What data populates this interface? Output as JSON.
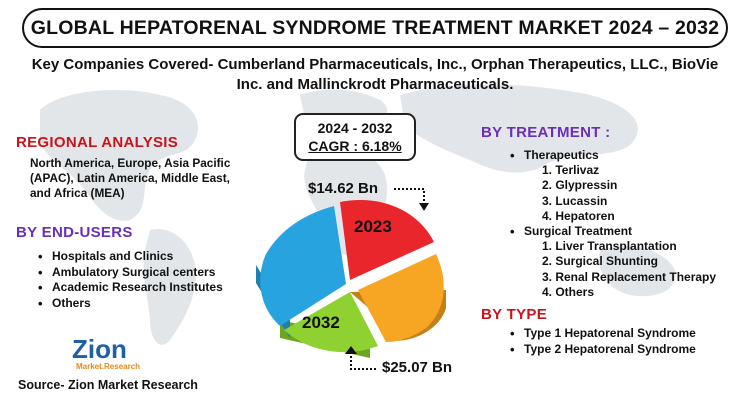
{
  "title": "GLOBAL HEPATORENAL SYNDROME TREATMENT MARKET 2024 – 2032",
  "subtitle": "Key Companies Covered- Cumberland Pharmaceuticals, Inc., Orphan Therapeutics, LLC., BioVie Inc. and Mallinckrodt Pharmaceuticals.",
  "cagr": {
    "period": "2024 - 2032",
    "value": "CAGR : 6.18%"
  },
  "regional": {
    "heading": "REGIONAL ANALYSIS",
    "text": "North America, Europe, Asia Pacific (APAC), Latin America, Middle East, and Africa (MEA)"
  },
  "end_users": {
    "heading": "BY END-USERS",
    "items": [
      "Hospitals and Clinics",
      "Ambulatory Surgical centers",
      "Academic Research Institutes",
      "Others"
    ]
  },
  "treatment": {
    "heading": "BY TREATMENT :",
    "groups": [
      {
        "name": "Therapeutics",
        "items": [
          "1. Terlivaz",
          "2. Glypressin",
          "3. Lucassin",
          "4. Hepatoren"
        ]
      },
      {
        "name": "Surgical Treatment",
        "items": [
          "1. Liver Transplantation",
          "2. Surgical Shunting",
          "3. Renal Replacement Therapy",
          "4. Others"
        ]
      }
    ]
  },
  "type": {
    "heading": "BY TYPE",
    "items": [
      "Type 1 Hepatorenal Syndrome",
      "Type 2 Hepatorenal Syndrome"
    ]
  },
  "chart": {
    "label_2023": "2023",
    "label_2032": "2032",
    "value_2023": "$14.62 Bn",
    "value_2032": "$25.07 Bn",
    "slice_colors": [
      "#e8262c",
      "#f6a623",
      "#8ed130",
      "#27a3e0"
    ]
  },
  "logo": {
    "name": "Zion",
    "sub": "Market.Research"
  },
  "source": "Source- Zion Market Research",
  "colors": {
    "regional": "#c8141c",
    "purple": "#6a2fb8"
  }
}
